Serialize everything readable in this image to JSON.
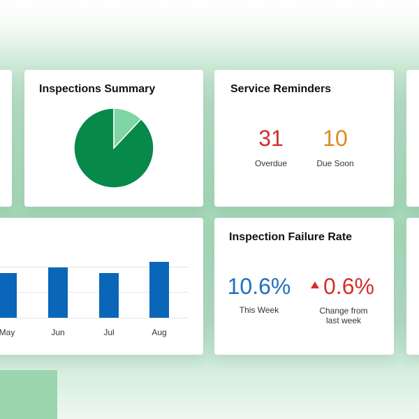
{
  "inspections_summary": {
    "title": "Inspections Summary",
    "chart_data": {
      "type": "pie",
      "slices": [
        {
          "value": 88,
          "color": "#07894a"
        },
        {
          "value": 12,
          "color": "#7fd4a3"
        }
      ]
    }
  },
  "service_reminders": {
    "title": "Service Reminders",
    "overdue": {
      "value": "31",
      "label": "Overdue",
      "color": "#d32f2f"
    },
    "due_soon": {
      "value": "10",
      "label": "Due Soon",
      "color": "#e08a1e"
    }
  },
  "bar_panel": {
    "chart_data": {
      "type": "bar",
      "categories": [
        "May",
        "Jun",
        "Jul",
        "Aug"
      ],
      "values": [
        64,
        72,
        64,
        80
      ],
      "ylim": [
        0,
        100
      ],
      "color": "#0a66b8"
    }
  },
  "inspection_failure_rate": {
    "title": "Inspection Failure Rate",
    "this_week": {
      "value": "10.6%",
      "label": "This Week",
      "color": "#1f6fc0"
    },
    "change": {
      "value": "0.6%",
      "label_line1": "Change from",
      "label_line2": "last week",
      "color": "#d32f2f"
    }
  }
}
